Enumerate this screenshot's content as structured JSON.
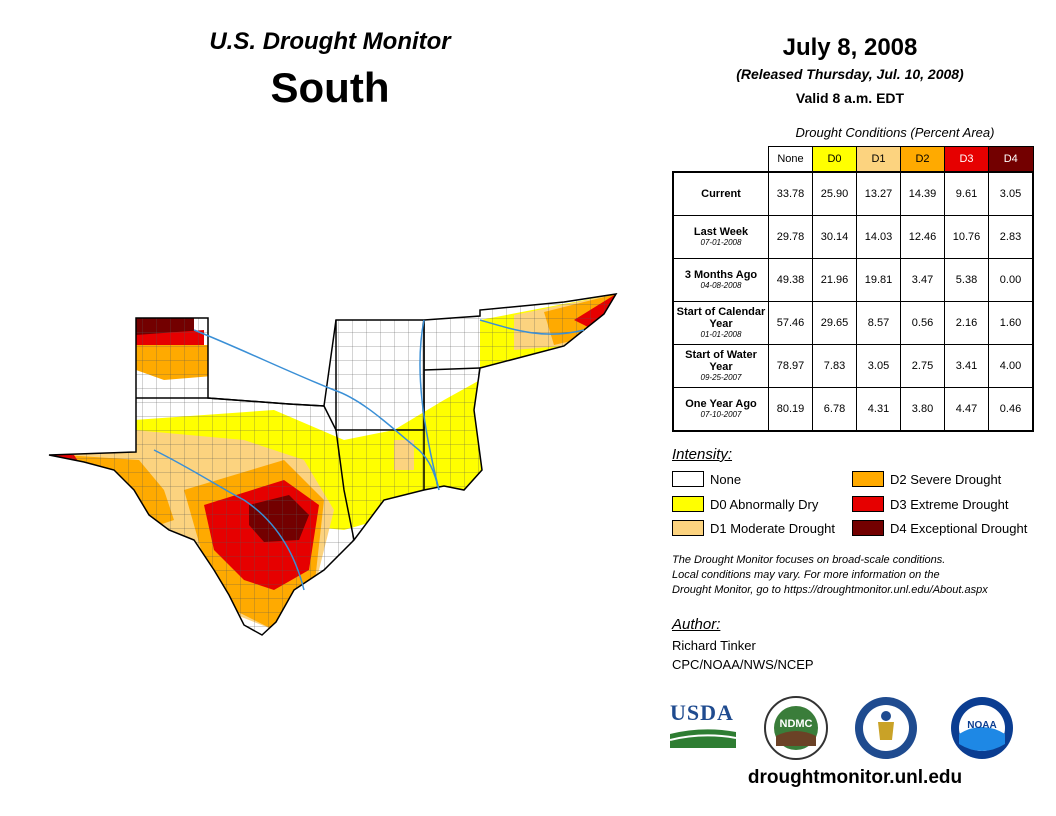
{
  "header": {
    "title": "U.S. Drought Monitor",
    "region": "South",
    "date": "July 8, 2008",
    "released": "(Released Thursday, Jul. 10, 2008)",
    "valid": "Valid 8 a.m. EDT"
  },
  "table": {
    "caption": "Drought Conditions (Percent Area)",
    "columns": [
      "None",
      "D0",
      "D1",
      "D2",
      "D3",
      "D4"
    ],
    "rows": [
      {
        "label": "Current",
        "sub": "",
        "values": [
          "33.78",
          "25.90",
          "13.27",
          "14.39",
          "9.61",
          "3.05"
        ]
      },
      {
        "label": "Last Week",
        "sub": "07-01-2008",
        "values": [
          "29.78",
          "30.14",
          "14.03",
          "12.46",
          "10.76",
          "2.83"
        ]
      },
      {
        "label": "3 Months Ago",
        "sub": "04-08-2008",
        "values": [
          "49.38",
          "21.96",
          "19.81",
          "3.47",
          "5.38",
          "0.00"
        ]
      },
      {
        "label": "Start of Calendar Year",
        "sub": "01-01-2008",
        "values": [
          "57.46",
          "29.65",
          "8.57",
          "0.56",
          "2.16",
          "1.60"
        ]
      },
      {
        "label": "Start of Water Year",
        "sub": "09-25-2007",
        "values": [
          "78.97",
          "7.83",
          "3.05",
          "2.75",
          "3.41",
          "4.00"
        ]
      },
      {
        "label": "One Year Ago",
        "sub": "07-10-2007",
        "values": [
          "80.19",
          "6.78",
          "4.31",
          "3.80",
          "4.47",
          "0.46"
        ]
      }
    ]
  },
  "legend": {
    "title": "Intensity:",
    "items": [
      {
        "label": "None",
        "color": "#ffffff"
      },
      {
        "label": "D0 Abnormally Dry",
        "color": "#ffff00"
      },
      {
        "label": "D1 Moderate Drought",
        "color": "#fcd37f"
      },
      {
        "label": "D2 Severe Drought",
        "color": "#ffaa00"
      },
      {
        "label": "D3 Extreme Drought",
        "color": "#e60000"
      },
      {
        "label": "D4 Exceptional Drought",
        "color": "#730000"
      }
    ]
  },
  "note": {
    "line1": "The Drought Monitor focuses on broad-scale conditions.",
    "line2": "Local conditions may vary. For more information on the",
    "line3": "Drought Monitor, go to https://droughtmonitor.unl.edu/About.aspx"
  },
  "author": {
    "label": "Author:",
    "name": "Richard Tinker",
    "org": "CPC/NOAA/NWS/NCEP"
  },
  "logos": {
    "usda": "USDA",
    "ndmc": "NDMC",
    "noaa": "NOAA"
  },
  "website": "droughtmonitor.unl.edu"
}
